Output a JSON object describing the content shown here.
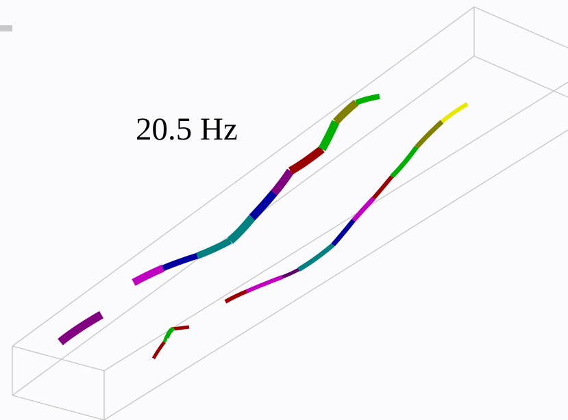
{
  "label": {
    "frequency": "20.5 Hz"
  },
  "colors": {
    "background": "#fbfbfd",
    "box_edge": "#c8c8c8",
    "text": "#000000",
    "palette": [
      "#800080",
      "#c000c0",
      "#0000a0",
      "#008080",
      "#9b0000",
      "#00b000",
      "#808000",
      "#e8e800",
      "#5a0066",
      "#206080"
    ]
  }
}
